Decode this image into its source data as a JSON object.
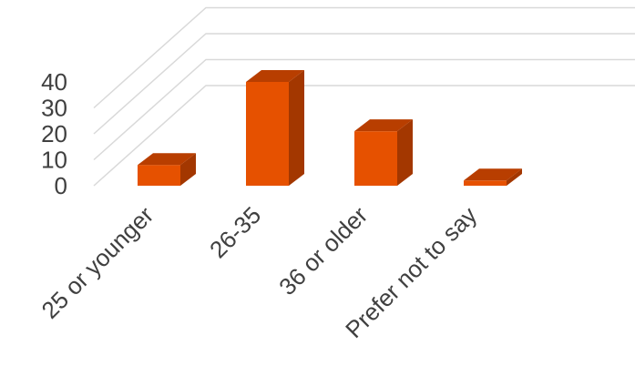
{
  "chart_data": {
    "type": "bar",
    "categories": [
      "25 or younger",
      "26-35",
      "36 or older",
      "Prefer not to say"
    ],
    "values": [
      8,
      40,
      21,
      2
    ],
    "yticks": [
      0,
      10,
      20,
      30,
      40
    ],
    "ylim": [
      0,
      70
    ],
    "grid": true,
    "bar_color": "#e65100",
    "bar_top_color": "#b83e00",
    "bar_side_color": "#a33700",
    "grid_color": "#d9d9d9",
    "title": "",
    "xlabel": "",
    "ylabel": ""
  }
}
